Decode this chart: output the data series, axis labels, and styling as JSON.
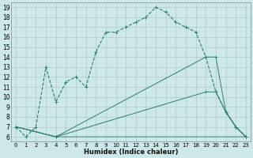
{
  "xlabel": "Humidex (Indice chaleur)",
  "bg_color": "#cde8e8",
  "grid_color": "#b0c8c8",
  "line_color": "#2e7d6e",
  "xlim": [
    -0.5,
    23.5
  ],
  "ylim": [
    5.5,
    19.5
  ],
  "xticks": [
    0,
    1,
    2,
    3,
    4,
    5,
    6,
    7,
    8,
    9,
    10,
    11,
    12,
    13,
    14,
    15,
    16,
    17,
    18,
    19,
    20,
    21,
    22,
    23
  ],
  "yticks": [
    6,
    7,
    8,
    9,
    10,
    11,
    12,
    13,
    14,
    15,
    16,
    17,
    18,
    19
  ],
  "line1_x": [
    0,
    1,
    2,
    3,
    4,
    5,
    6,
    7,
    8,
    9,
    10,
    11,
    12,
    13,
    14,
    15,
    16,
    17,
    18,
    19,
    20,
    21,
    22,
    23
  ],
  "line1_y": [
    7.0,
    6.0,
    7.0,
    13.0,
    9.5,
    11.5,
    12.0,
    11.0,
    14.5,
    16.5,
    16.5,
    17.0,
    17.5,
    18.0,
    19.0,
    18.5,
    17.5,
    17.0,
    16.5,
    14.0,
    10.5,
    8.5,
    7.0,
    6.0
  ],
  "line2_x": [
    0,
    4,
    19,
    20,
    21,
    22,
    23
  ],
  "line2_y": [
    7.0,
    6.0,
    14.0,
    14.0,
    8.5,
    7.0,
    6.0
  ],
  "line3_x": [
    0,
    4,
    19,
    20,
    21,
    22,
    23
  ],
  "line3_y": [
    7.0,
    6.0,
    10.5,
    10.5,
    8.5,
    7.0,
    6.0
  ],
  "line4_x": [
    0,
    4,
    23
  ],
  "line4_y": [
    7.0,
    6.0,
    6.0
  ]
}
